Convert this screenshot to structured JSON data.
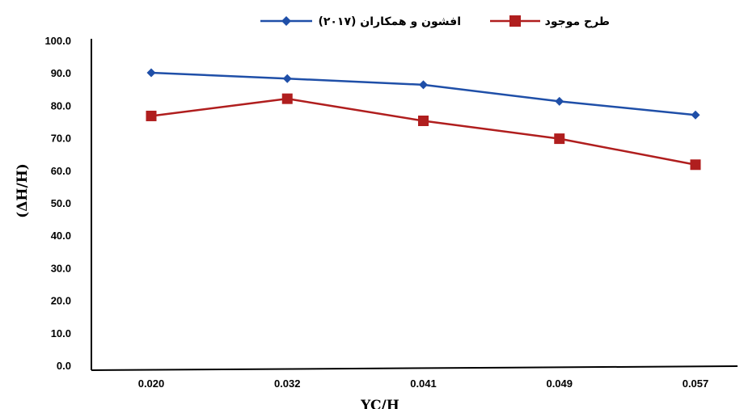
{
  "chart_data": {
    "type": "line",
    "categories": [
      "0.020",
      "0.032",
      "0.041",
      "0.049",
      "0.057"
    ],
    "xlabel": "YC/H",
    "ylabel": "(ΔH/H)",
    "ylim": [
      0,
      100
    ],
    "yticks": [
      "0.0",
      "10.0",
      "20.0",
      "30.0",
      "40.0",
      "50.0",
      "60.0",
      "70.0",
      "80.0",
      "90.0",
      "100.0"
    ],
    "grid": false,
    "legend_position": "top",
    "series": [
      {
        "name": "افشون و همکاران (۲۰۱۷)",
        "values": [
          90.3,
          88.5,
          86.6,
          81.5,
          77.3
        ],
        "color": "#1f4fa8",
        "marker": "diamond"
      },
      {
        "name": "طرح موجود",
        "values": [
          77.0,
          82.3,
          75.5,
          70.0,
          62.0
        ],
        "color": "#b01e1e",
        "marker": "square"
      }
    ]
  }
}
